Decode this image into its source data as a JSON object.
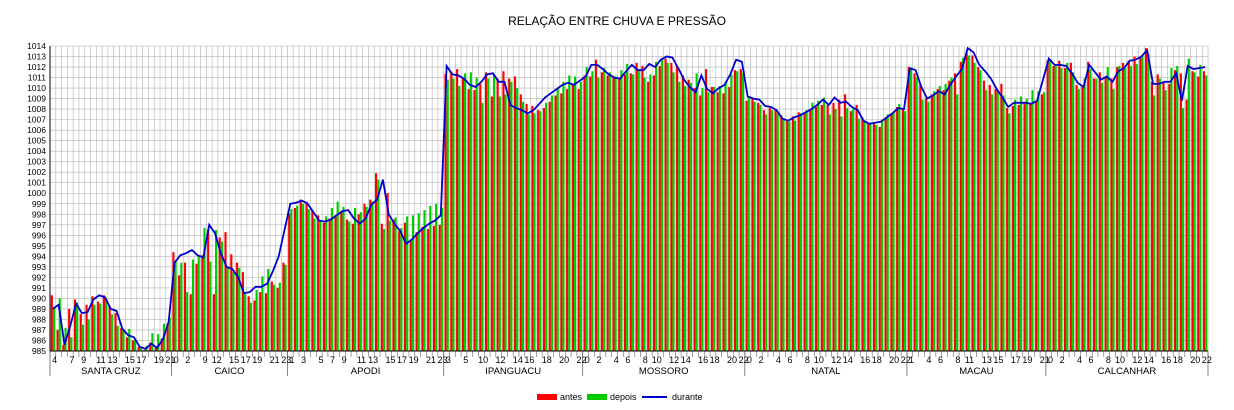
{
  "chart_data": {
    "type": "bar",
    "title": "RELAÇÃO ENTRE CHUVA E PRESSÃO",
    "xlabel": "",
    "ylabel": "",
    "ylim": [
      985,
      1014
    ],
    "y_ticks": [
      985,
      986,
      987,
      988,
      989,
      990,
      991,
      992,
      993,
      994,
      995,
      996,
      997,
      998,
      999,
      1000,
      1001,
      1002,
      1003,
      1004,
      1005,
      1006,
      1007,
      1008,
      1009,
      1010,
      1011,
      1012,
      1013,
      1014
    ],
    "grid": true,
    "legend_position": "bottom",
    "legend": [
      "antes",
      "depois",
      "durante"
    ],
    "colors": {
      "antes": "#ff0000",
      "depois": "#00cc00",
      "durante": "#0000cc"
    },
    "categories": [
      "SANTA CRUZ",
      "CAICO",
      "APODI",
      "IPANGUACU",
      "MOSSORO",
      "NATAL",
      "MACAU",
      "CALCANHAR"
    ],
    "category_tick_labels": [
      [
        "4",
        "7",
        "9",
        "11",
        "13",
        "15",
        "17",
        "19",
        "21"
      ],
      [
        "0",
        "2",
        "9",
        "12",
        "15",
        "17",
        "19",
        "21",
        "23"
      ],
      [
        "1",
        "3",
        "5",
        "7",
        "9",
        "11",
        "13",
        "15",
        "17",
        "19",
        "21",
        "23"
      ],
      [
        "3",
        "5",
        "10",
        "12",
        "14",
        "16",
        "18",
        "20",
        "22"
      ],
      [
        "0",
        "2",
        "4",
        "6",
        "8",
        "10",
        "12",
        "14",
        "16",
        "18",
        "20",
        "22"
      ],
      [
        "0",
        "2",
        "4",
        "6",
        "8",
        "10",
        "12",
        "14",
        "16",
        "18",
        "20",
        "22"
      ],
      [
        "1",
        "4",
        "6",
        "8",
        "11",
        "13",
        "15",
        "17",
        "19",
        "21"
      ],
      [
        "0",
        "2",
        "4",
        "6",
        "8",
        "10",
        "12",
        "14",
        "16",
        "18",
        "20",
        "22"
      ]
    ],
    "series": [
      {
        "name": "antes",
        "values": [
          [
            990.3,
            987.0,
            985.6,
            989.0,
            989.9,
            988.5,
            989.4,
            990.2,
            989.7,
            990.3,
            989.2,
            988.6,
            987.2,
            986.3,
            986.0,
            985.4,
            985.1,
            985.8,
            985.4,
            986.2,
            987.6
          ],
          [
            994.4,
            992.2,
            993.4,
            990.4,
            993.3,
            994.1,
            996.5,
            990.4,
            995.8,
            996.3,
            994.2,
            993.4,
            992.5,
            990.2,
            989.8,
            990.6,
            990.5,
            991.6,
            991.0,
            993.4
          ],
          [
            998.1,
            998.6,
            999.4,
            999.2,
            998.4,
            997.9,
            997.2,
            997.6,
            997.9,
            998.3,
            997.5,
            997.1,
            998.0,
            999.0,
            999.4,
            1001.9,
            997.1,
            1000.0,
            997.5,
            996.4,
            997.2,
            995.6,
            996.3,
            996.8,
            996.6,
            996.9,
            997.0
          ],
          [
            1011.3,
            1011.5,
            1011.8,
            1011.0,
            1009.9,
            1009.8,
            1010.4,
            1011.5,
            1009.2,
            1010.9,
            1011.6,
            1010.9,
            1011.1,
            1009.4,
            1008.5,
            1008.3,
            1007.9,
            1008.1,
            1008.7,
            1009.3,
            1009.5,
            1009.9,
            1010.3,
            1009.9
          ],
          [
            1011.2,
            1011.1,
            1012.7,
            1011.5,
            1011.2,
            1011.1,
            1010.9,
            1011.3,
            1011.4,
            1012.4,
            1012.1,
            1010.6,
            1011.2,
            1012.1,
            1012.8,
            1012.4,
            1012.1,
            1011.2,
            1010.8,
            1010.0,
            1009.3,
            1011.8,
            1010.1,
            1009.6,
            1009.5,
            1010.1,
            1011.7,
            1011.8
          ],
          [
            1008.8,
            1009.1,
            1008.6,
            1007.9,
            1008.1,
            1007.9,
            1007.4,
            1006.9,
            1007.3,
            1007.7,
            1007.6,
            1007.9,
            1008.2,
            1008.4,
            1008.4,
            1008.6,
            1008.9,
            1009.4,
            1007.8,
            1008.4,
            1007.2,
            1006.6,
            1006.7,
            1006.3,
            1007.2,
            1007.5,
            1008.2,
            1008.1
          ],
          [
            1012.0,
            1011.4,
            1010.4,
            1009.0,
            1009.4,
            1009.9,
            1009.8,
            1010.7,
            1011.4,
            1012.5,
            1013.4,
            1013.1,
            1012.0,
            1010.7,
            1010.3,
            1009.9,
            1010.4,
            1008.1,
            1008.3,
            1008.4,
            1008.7,
            1008.6,
            1008.8,
            1009.4
          ],
          [
            1012.6,
            1012.1,
            1012.6,
            1011.9,
            1012.4,
            1010.3,
            1010.1,
            1012.5,
            1010.9,
            1011.5,
            1011.1,
            1010.9,
            1012.0,
            1012.4,
            1012.6,
            1013.0,
            1013.0,
            1013.8,
            1010.6,
            1011.3,
            1010.5,
            1010.4,
            1011.7,
            1011.4,
            1008.9,
            1011.6,
            1011.1,
            1011.6
          ]
        ]
      },
      {
        "name": "depois",
        "values": [
          [
            989.2,
            990.0,
            987.2,
            986.3,
            989.6,
            987.5,
            988.0,
            989.4,
            989.5,
            989.9,
            988.5,
            987.4,
            986.9,
            987.1,
            986.2,
            985.3,
            985.5,
            986.7,
            986.6,
            987.6,
            988.2
          ],
          [
            993.6,
            993.4,
            990.6,
            993.7,
            994.0,
            996.7,
            993.5,
            996.5,
            995.4,
            993.0,
            992.5,
            992.9,
            990.4,
            989.6,
            990.8,
            992.1,
            992.8,
            991.3,
            991.5,
            993.2
          ],
          [
            998.5,
            998.8,
            999.0,
            998.5,
            997.6,
            997.3,
            997.8,
            998.6,
            999.2,
            998.7,
            997.3,
            998.6,
            998.2,
            998.7,
            999.2,
            1001.3,
            996.6,
            997.4,
            997.7,
            996.7,
            997.8,
            997.9,
            998.1,
            998.4,
            998.8,
            999.0,
            998.6
          ],
          [
            1010.8,
            1010.9,
            1010.2,
            1011.4,
            1011.5,
            1011.0,
            1008.6,
            1010.9,
            1011.2,
            1009.2,
            1009.4,
            1010.6,
            1010.0,
            1008.7,
            1007.5,
            1007.6,
            1007.8,
            1008.6,
            1009.3,
            1009.9,
            1010.6,
            1011.2,
            1011.1,
            1010.6
          ],
          [
            1012.0,
            1011.6,
            1011.0,
            1011.9,
            1011.5,
            1011.1,
            1011.7,
            1012.3,
            1011.3,
            1011.8,
            1011.0,
            1011.3,
            1012.5,
            1012.8,
            1012.4,
            1011.5,
            1010.6,
            1010.2,
            1010.5,
            1011.4,
            1010.0,
            1009.6,
            1010.1,
            1010.2,
            1010.6,
            1011.3,
            1011.6,
            1011.4
          ],
          [
            1009.2,
            1008.7,
            1008.4,
            1007.5,
            1007.9,
            1007.6,
            1007.0,
            1006.8,
            1006.9,
            1007.6,
            1007.9,
            1008.6,
            1008.8,
            1009.1,
            1007.5,
            1008.0,
            1007.3,
            1008.1,
            1008.0,
            1007.1,
            1006.8,
            1006.6,
            1006.5,
            1007.0,
            1007.5,
            1007.7,
            1008.5,
            1007.8
          ],
          [
            1011.8,
            1011.0,
            1008.9,
            1008.7,
            1009.7,
            1010.2,
            1010.4,
            1011.0,
            1009.4,
            1012.9,
            1013.1,
            1012.4,
            1011.7,
            1009.8,
            1009.4,
            1009.7,
            1009.3,
            1007.6,
            1008.9,
            1009.2,
            1009.0,
            1009.8,
            1009.7,
            1009.6
          ],
          [
            1012.7,
            1012.3,
            1011.9,
            1012.4,
            1011.5,
            1009.9,
            1010.9,
            1011.8,
            1010.9,
            1010.5,
            1012.0,
            1009.9,
            1012.1,
            1011.9,
            1012.1,
            1012.3,
            1013.0,
            1013.2,
            1009.3,
            1010.9,
            1009.8,
            1011.9,
            1012.1,
            1008.1,
            1012.8,
            1011.5,
            1012.2,
            1011.2
          ]
        ]
      },
      {
        "name": "durante",
        "values": [
          [
            989.0,
            989.4,
            985.6,
            987.4,
            989.5,
            988.6,
            988.7,
            989.9,
            990.3,
            990.1,
            989.0,
            988.8,
            987.1,
            986.5,
            986.3,
            985.4,
            985.2,
            985.7,
            985.3,
            986.1,
            987.8
          ],
          [
            993.4,
            994.1,
            994.3,
            994.6,
            994.1,
            993.9,
            997.0,
            996.2,
            994.3,
            993.0,
            992.8,
            992.0,
            990.5,
            990.6,
            991.1,
            991.1,
            991.4,
            992.6,
            994.0
          ],
          [
            999.0,
            999.1,
            999.3,
            999.0,
            998.2,
            997.4,
            997.3,
            997.5,
            997.9,
            998.3,
            998.4,
            997.6,
            997.1,
            997.6,
            998.9,
            999.4,
            1001.3,
            998.0,
            997.1,
            996.4,
            995.2,
            995.6,
            996.2,
            996.7,
            997.1,
            997.4,
            997.9
          ],
          [
            1012.1,
            1011.3,
            1011.2,
            1010.9,
            1010.3,
            1010.1,
            1010.6,
            1011.3,
            1011.4,
            1010.6,
            1010.6,
            1008.4,
            1008.1,
            1007.9,
            1007.6,
            1007.9,
            1008.5,
            1009.1,
            1009.5,
            1009.9,
            1010.3,
            1010.5,
            1010.3
          ],
          [
            1011.1,
            1012.2,
            1012.2,
            1011.8,
            1011.3,
            1011.0,
            1010.9,
            1011.6,
            1012.2,
            1011.7,
            1011.7,
            1012.3,
            1012.0,
            1012.7,
            1013.0,
            1012.9,
            1011.9,
            1010.8,
            1010.1,
            1009.6,
            1011.2,
            1009.9,
            1009.5,
            1010.0,
            1010.3,
            1011.3,
            1012.7,
            1012.5
          ],
          [
            1009.2,
            1009.0,
            1008.9,
            1008.3,
            1008.2,
            1007.9,
            1007.1,
            1006.9,
            1007.2,
            1007.4,
            1007.7,
            1008.0,
            1008.4,
            1008.9,
            1008.4,
            1009.1,
            1008.6,
            1008.7,
            1008.2,
            1007.9,
            1006.9,
            1006.6,
            1006.7,
            1006.8,
            1007.2,
            1007.6,
            1008.1,
            1008.0
          ],
          [
            1011.9,
            1011.7,
            1010.1,
            1009.0,
            1009.3,
            1009.7,
            1009.4,
            1010.3,
            1011.1,
            1011.8,
            1013.8,
            1013.4,
            1012.2,
            1011.6,
            1010.9,
            1009.9,
            1009.1,
            1008.2,
            1008.6,
            1008.6,
            1008.6,
            1008.5,
            1008.8
          ],
          [
            1012.8,
            1012.2,
            1012.2,
            1012.1,
            1011.4,
            1010.5,
            1010.1,
            1012.2,
            1011.5,
            1010.8,
            1011.1,
            1010.6,
            1011.6,
            1011.9,
            1012.6,
            1012.7,
            1013.0,
            1013.6,
            1010.4,
            1010.4,
            1010.6,
            1010.6,
            1011.4,
            1008.8,
            1012.1,
            1011.8,
            1011.9,
            1012.0
          ]
        ]
      }
    ]
  }
}
